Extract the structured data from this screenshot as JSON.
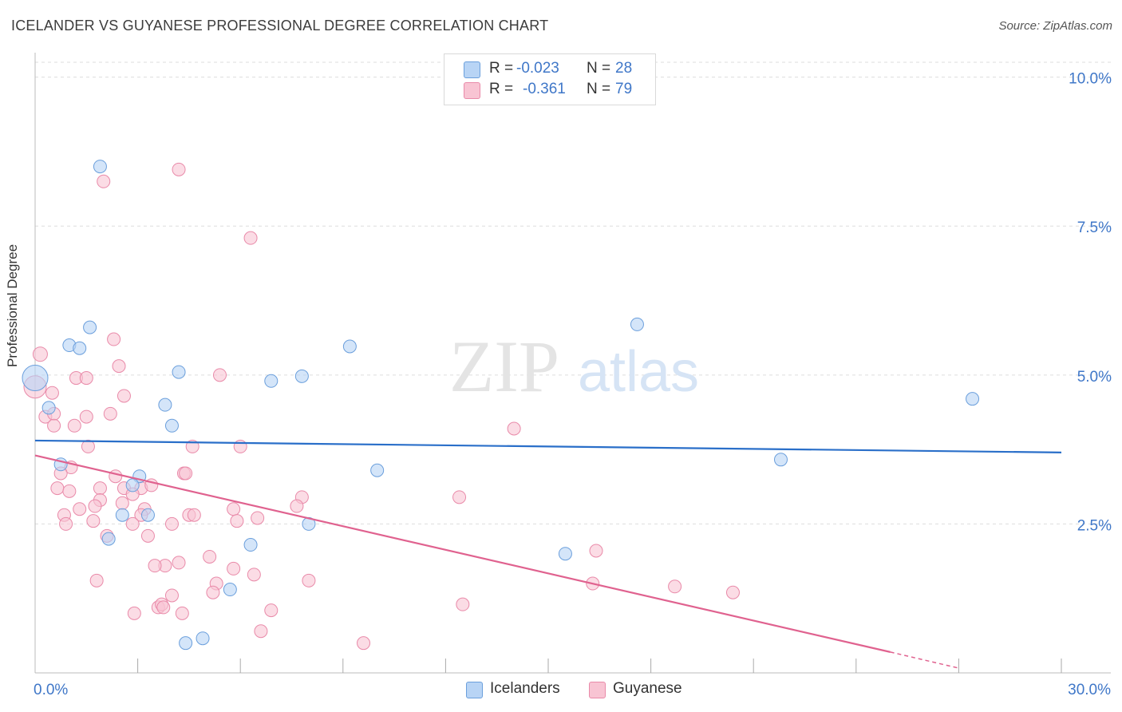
{
  "header": {
    "title": "ICELANDER VS GUYANESE PROFESSIONAL DEGREE CORRELATION CHART",
    "source": "Source: ZipAtlas.com"
  },
  "watermark": {
    "zip": "ZIP",
    "atlas": "atlas"
  },
  "colors": {
    "icelanders_fill": "#b8d4f5",
    "icelanders_stroke": "#6b9fdc",
    "icelanders_line": "#2a6fc9",
    "guyanese_fill": "#f8c4d3",
    "guyanese_stroke": "#e98aa9",
    "guyanese_line": "#e0628f",
    "tick_label": "#3f77c8",
    "grid": "#dddddd"
  },
  "legend": {
    "icelanders": {
      "r_label": "R =",
      "r_value": "-0.023",
      "n_label": "N =",
      "n_value": "28"
    },
    "guyanese": {
      "r_label": "R =",
      "r_value": "-0.361",
      "n_label": "N =",
      "n_value": "79"
    }
  },
  "bottom_legend": {
    "icelanders": "Icelanders",
    "guyanese": "Guyanese"
  },
  "chart_data": {
    "type": "scatter",
    "title": "ICELANDER VS GUYANESE PROFESSIONAL DEGREE CORRELATION CHART",
    "xlabel": "",
    "ylabel": "Professional Degree",
    "xlim": [
      0,
      30
    ],
    "ylim": [
      0,
      10.25
    ],
    "x_tick_labels": [
      {
        "value": 0,
        "label": "0.0%"
      },
      {
        "value": 30,
        "label": "30.0%"
      }
    ],
    "y_tick_labels": [
      {
        "value": 2.5,
        "label": "2.5%"
      },
      {
        "value": 5.0,
        "label": "5.0%"
      },
      {
        "value": 7.5,
        "label": "7.5%"
      },
      {
        "value": 10.0,
        "label": "10.0%"
      }
    ],
    "series": [
      {
        "name": "Icelanders",
        "r": -0.023,
        "n": 28,
        "trend": {
          "x0": 0,
          "y0": 3.9,
          "x1": 30,
          "y1": 3.7
        },
        "points": [
          [
            0.0,
            4.95,
            16
          ],
          [
            1.9,
            8.5,
            8
          ],
          [
            1.6,
            5.8,
            8
          ],
          [
            1.0,
            5.5,
            8
          ],
          [
            1.3,
            5.45,
            8
          ],
          [
            0.4,
            4.45,
            8
          ],
          [
            3.8,
            4.5,
            8
          ],
          [
            4.2,
            5.05,
            8
          ],
          [
            4.0,
            4.15,
            8
          ],
          [
            6.9,
            4.9,
            8
          ],
          [
            7.8,
            4.98,
            8
          ],
          [
            9.2,
            5.48,
            8
          ],
          [
            17.6,
            5.85,
            8
          ],
          [
            27.4,
            4.6,
            8
          ],
          [
            0.75,
            3.5,
            8
          ],
          [
            3.05,
            3.3,
            8
          ],
          [
            2.85,
            3.15,
            8
          ],
          [
            10.0,
            3.4,
            8
          ],
          [
            2.55,
            2.65,
            8
          ],
          [
            3.3,
            2.65,
            8
          ],
          [
            8.0,
            2.5,
            8
          ],
          [
            2.15,
            2.25,
            8
          ],
          [
            6.3,
            2.15,
            8
          ],
          [
            15.5,
            2.0,
            8
          ],
          [
            21.8,
            3.58,
            8
          ],
          [
            5.7,
            1.4,
            8
          ],
          [
            4.4,
            0.5,
            8
          ],
          [
            4.9,
            0.58,
            8
          ]
        ]
      },
      {
        "name": "Guyanese",
        "r": -0.361,
        "n": 79,
        "trend": {
          "x0": 0,
          "y0": 3.65,
          "x1": 25.0,
          "y1": 0.35,
          "dash_to_x": 27.0,
          "dash_to_y": 0.08
        },
        "points": [
          [
            0.0,
            4.8,
            14
          ],
          [
            0.15,
            5.35,
            9
          ],
          [
            2.0,
            8.25,
            8
          ],
          [
            4.2,
            8.45,
            8
          ],
          [
            6.3,
            7.3,
            8
          ],
          [
            2.3,
            5.6,
            8
          ],
          [
            2.45,
            5.15,
            8
          ],
          [
            0.3,
            4.3,
            8
          ],
          [
            0.5,
            4.7,
            8
          ],
          [
            0.55,
            4.35,
            8
          ],
          [
            0.55,
            4.15,
            8
          ],
          [
            1.2,
            4.95,
            8
          ],
          [
            1.5,
            4.95,
            8
          ],
          [
            2.6,
            4.65,
            8
          ],
          [
            5.4,
            5.0,
            8
          ],
          [
            2.2,
            4.35,
            8
          ],
          [
            1.5,
            4.3,
            8
          ],
          [
            1.15,
            4.15,
            8
          ],
          [
            1.55,
            3.8,
            8
          ],
          [
            4.6,
            3.8,
            8
          ],
          [
            6.0,
            3.8,
            8
          ],
          [
            14.0,
            4.1,
            8
          ],
          [
            1.05,
            3.45,
            8
          ],
          [
            0.75,
            3.35,
            8
          ],
          [
            2.35,
            3.3,
            8
          ],
          [
            4.35,
            3.35,
            8
          ],
          [
            4.4,
            3.35,
            8
          ],
          [
            0.65,
            3.1,
            8
          ],
          [
            1.0,
            3.05,
            8
          ],
          [
            1.9,
            3.1,
            8
          ],
          [
            2.6,
            3.1,
            8
          ],
          [
            3.1,
            3.1,
            8
          ],
          [
            3.4,
            3.15,
            8
          ],
          [
            2.85,
            3.0,
            8
          ],
          [
            1.9,
            2.9,
            8
          ],
          [
            2.55,
            2.85,
            8
          ],
          [
            1.75,
            2.8,
            8
          ],
          [
            1.3,
            2.75,
            8
          ],
          [
            3.2,
            2.75,
            8
          ],
          [
            5.8,
            2.75,
            8
          ],
          [
            7.8,
            2.95,
            8
          ],
          [
            7.65,
            2.8,
            8
          ],
          [
            12.4,
            2.95,
            8
          ],
          [
            0.85,
            2.65,
            8
          ],
          [
            3.1,
            2.65,
            8
          ],
          [
            4.5,
            2.65,
            8
          ],
          [
            4.65,
            2.65,
            8
          ],
          [
            6.5,
            2.6,
            8
          ],
          [
            0.9,
            2.5,
            8
          ],
          [
            1.7,
            2.55,
            8
          ],
          [
            2.85,
            2.5,
            8
          ],
          [
            4.0,
            2.5,
            8
          ],
          [
            5.9,
            2.55,
            8
          ],
          [
            2.1,
            2.3,
            8
          ],
          [
            3.3,
            2.3,
            8
          ],
          [
            5.1,
            1.95,
            8
          ],
          [
            4.2,
            1.85,
            8
          ],
          [
            3.8,
            1.8,
            8
          ],
          [
            3.5,
            1.8,
            8
          ],
          [
            5.8,
            1.75,
            8
          ],
          [
            6.4,
            1.65,
            8
          ],
          [
            1.8,
            1.55,
            8
          ],
          [
            5.3,
            1.5,
            8
          ],
          [
            8.0,
            1.55,
            8
          ],
          [
            16.4,
            2.05,
            8
          ],
          [
            16.3,
            1.5,
            8
          ],
          [
            18.7,
            1.45,
            8
          ],
          [
            20.4,
            1.35,
            8
          ],
          [
            4.0,
            1.3,
            8
          ],
          [
            5.2,
            1.35,
            8
          ],
          [
            3.6,
            1.1,
            8
          ],
          [
            3.7,
            1.15,
            8
          ],
          [
            12.5,
            1.15,
            8
          ],
          [
            2.9,
            1.0,
            8
          ],
          [
            4.3,
            1.0,
            8
          ],
          [
            6.9,
            1.05,
            8
          ],
          [
            6.6,
            0.7,
            8
          ],
          [
            9.6,
            0.5,
            8
          ],
          [
            3.75,
            1.1,
            8
          ]
        ]
      }
    ]
  }
}
